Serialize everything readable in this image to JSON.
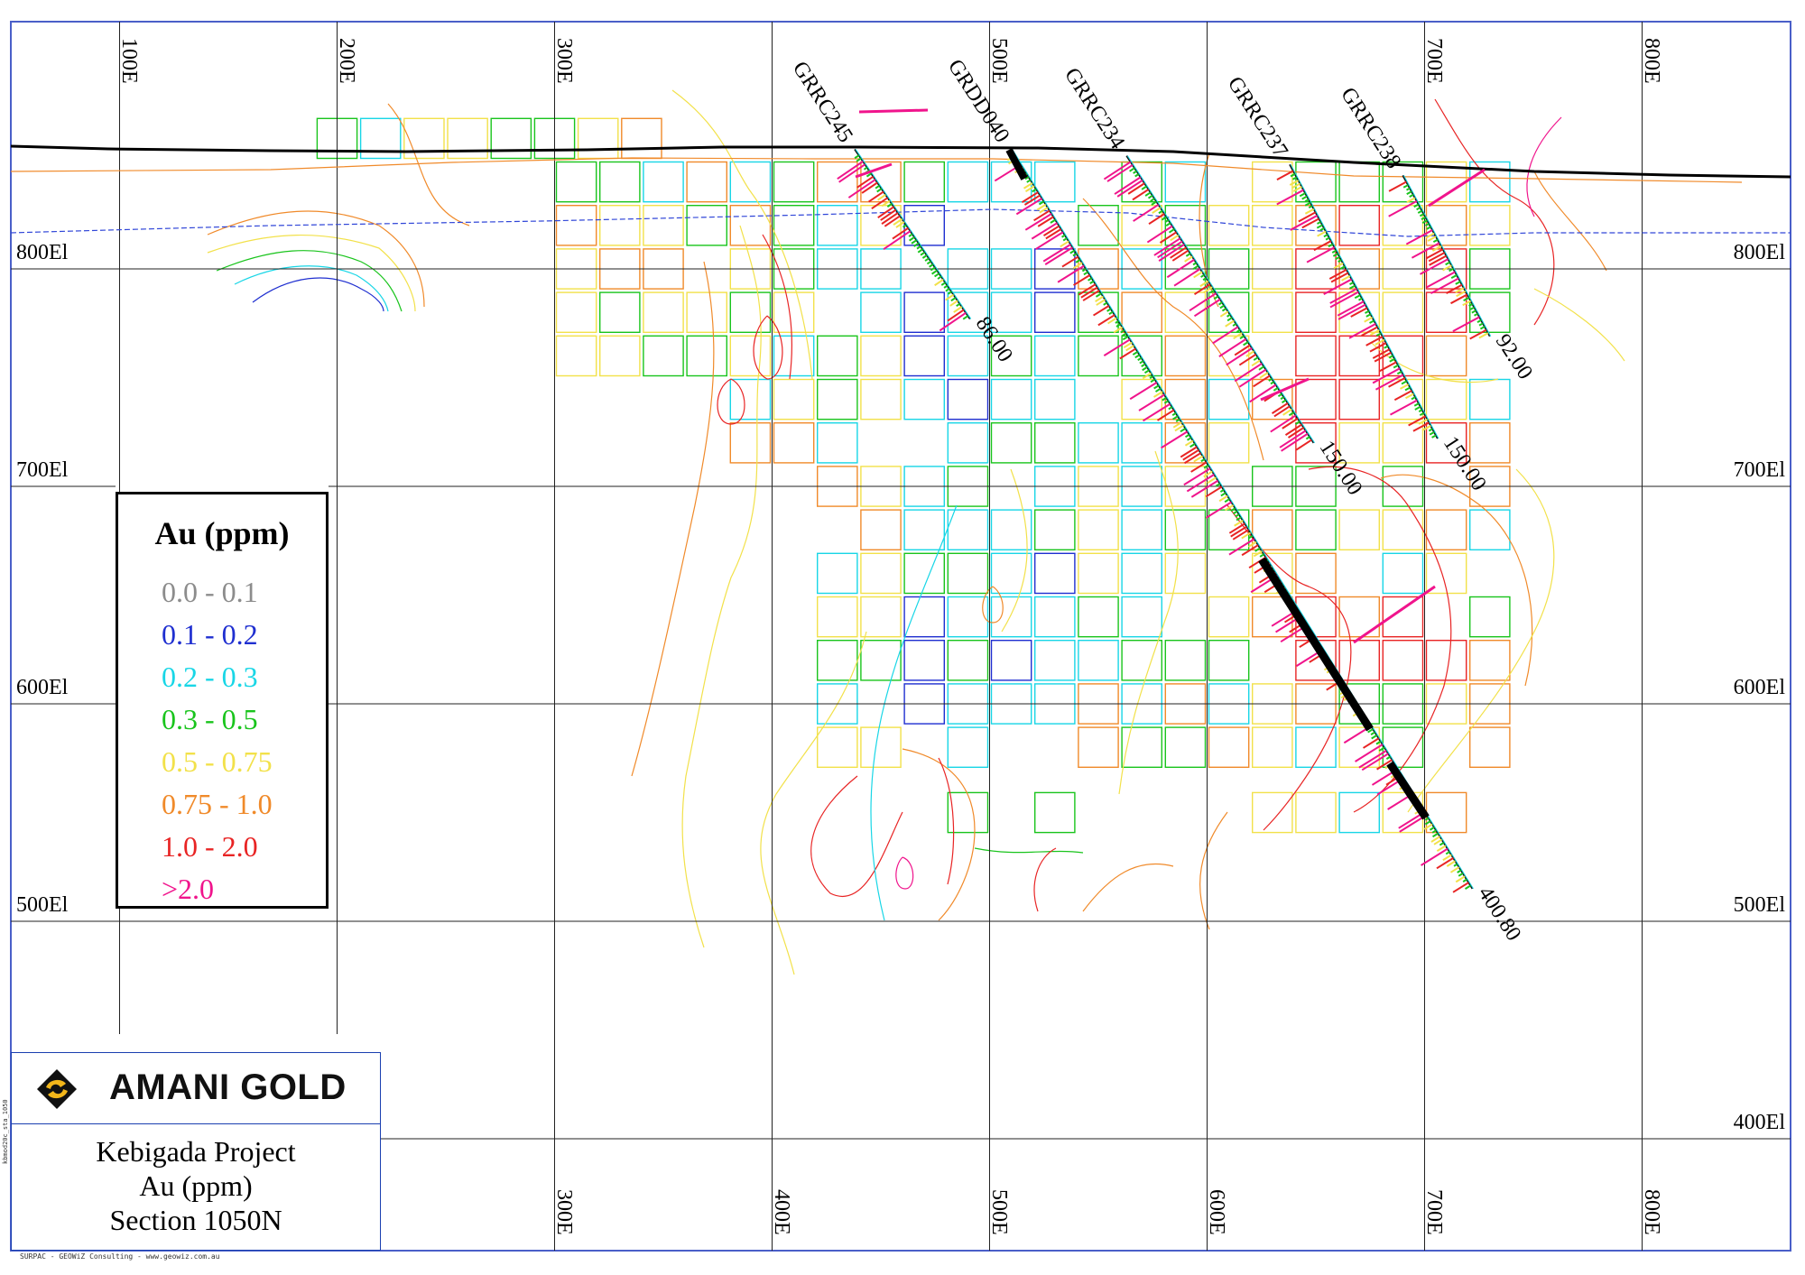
{
  "section": {
    "grid_easting_top": [
      "100E",
      "200E",
      "300E",
      "400E",
      "500E",
      "600E",
      "700E",
      "800E"
    ],
    "grid_easting_bottom": [
      "300E",
      "400E",
      "500E",
      "600E",
      "700E",
      "800E"
    ],
    "grid_elevation_left": [
      "800El",
      "700El",
      "600El",
      "500El"
    ],
    "grid_elevation_right": [
      "800El",
      "700El",
      "600El",
      "500El",
      "400El"
    ]
  },
  "holes": [
    {
      "id": "GRRC245",
      "depth": "86.00",
      "collar_e": 438,
      "collar_el": 855,
      "end_e": 491,
      "end_el": 777
    },
    {
      "id": "GRDD040",
      "depth": "400.80",
      "collar_e": 510,
      "collar_el": 855,
      "end_e": 722,
      "end_el": 515
    },
    {
      "id": "GRRC234",
      "depth": "150.00",
      "collar_e": 563,
      "collar_el": 852,
      "end_e": 649,
      "end_el": 720
    },
    {
      "id": "GRRC237",
      "depth": "150.00",
      "collar_e": 638,
      "collar_el": 848,
      "end_e": 706,
      "end_el": 722
    },
    {
      "id": "GRRC238",
      "depth": "92.00",
      "collar_e": 690,
      "collar_el": 843,
      "end_e": 730,
      "end_el": 769
    }
  ],
  "legend": {
    "title": "Au (ppm)",
    "items": [
      {
        "label": "0.0 - 0.1",
        "color": "#8c8c8c"
      },
      {
        "label": "0.1 - 0.2",
        "color": "#1f2fd0"
      },
      {
        "label": "0.2 - 0.3",
        "color": "#18d6e6"
      },
      {
        "label": "0.3 - 0.5",
        "color": "#19c41c"
      },
      {
        "label": "0.5 - 0.75",
        "color": "#f2e14a"
      },
      {
        "label": "0.75 - 1.0",
        "color": "#f08a2a"
      },
      {
        "label": "1.0 - 2.0",
        "color": "#e82424"
      },
      {
        "label": ">2.0",
        "color": "#f0148c"
      }
    ]
  },
  "title_block": {
    "company": "AMANI GOLD",
    "project": "Kebigada Project",
    "variable": "Au (ppm)",
    "section": "Section 1050N"
  },
  "footer": {
    "credit": "SURPAC - GEOWiZ Consulting - www.geowiz.com.au",
    "code": "kbmod20c_sta_1050"
  }
}
